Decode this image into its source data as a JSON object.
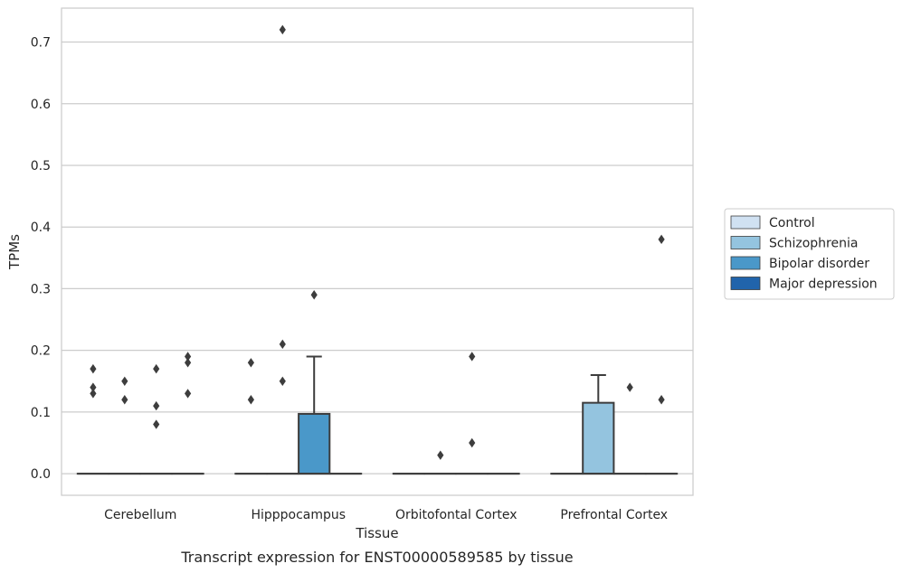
{
  "chart_data": {
    "type": "box",
    "title": "",
    "caption": "Transcript expression for ENST00000589585 by tissue",
    "xlabel": "Tissue",
    "ylabel": "TPMs",
    "ylim": [
      -0.035,
      0.755
    ],
    "yticks": [
      0.0,
      0.1,
      0.2,
      0.3,
      0.4,
      0.5,
      0.6,
      0.7
    ],
    "ytick_labels": [
      "0.0",
      "0.1",
      "0.2",
      "0.3",
      "0.4",
      "0.5",
      "0.6",
      "0.7"
    ],
    "grid": "horizontal",
    "legend_position": "right",
    "categories": [
      "Cerebellum",
      "Hipppocampus",
      "Orbitofontal Cortex",
      "Prefrontal Cortex"
    ],
    "series": [
      {
        "name": "Control",
        "color": "#d0e1f2"
      },
      {
        "name": "Schizophrenia",
        "color": "#94c4df"
      },
      {
        "name": "Bipolar disorder",
        "color": "#4a98c9"
      },
      {
        "name": "Major depression",
        "color": "#2164ab"
      }
    ],
    "boxes": [
      {
        "category": 0,
        "series": 0,
        "q1": 0,
        "median": 0,
        "q3": 0,
        "whisker_low": 0,
        "whisker_high": 0,
        "outliers": [
          0.17,
          0.14,
          0.13
        ]
      },
      {
        "category": 0,
        "series": 1,
        "q1": 0,
        "median": 0,
        "q3": 0,
        "whisker_low": 0,
        "whisker_high": 0,
        "outliers": [
          0.15,
          0.12
        ]
      },
      {
        "category": 0,
        "series": 2,
        "q1": 0,
        "median": 0,
        "q3": 0,
        "whisker_low": 0,
        "whisker_high": 0,
        "outliers": [
          0.17,
          0.11,
          0.08
        ]
      },
      {
        "category": 0,
        "series": 3,
        "q1": 0,
        "median": 0,
        "q3": 0,
        "whisker_low": 0,
        "whisker_high": 0,
        "outliers": [
          0.19,
          0.18,
          0.13
        ]
      },
      {
        "category": 1,
        "series": 0,
        "q1": 0,
        "median": 0,
        "q3": 0,
        "whisker_low": 0,
        "whisker_high": 0,
        "outliers": [
          0.18,
          0.12
        ]
      },
      {
        "category": 1,
        "series": 1,
        "q1": 0,
        "median": 0,
        "q3": 0,
        "whisker_low": 0,
        "whisker_high": 0,
        "outliers": [
          0.72,
          0.21,
          0.15
        ]
      },
      {
        "category": 1,
        "series": 2,
        "q1": 0,
        "median": 0,
        "q3": 0.097,
        "whisker_low": 0,
        "whisker_high": 0.19,
        "outliers": [
          0.29
        ]
      },
      {
        "category": 1,
        "series": 3,
        "q1": 0,
        "median": 0,
        "q3": 0,
        "whisker_low": 0,
        "whisker_high": 0,
        "outliers": []
      },
      {
        "category": 2,
        "series": 0,
        "q1": 0,
        "median": 0,
        "q3": 0,
        "whisker_low": 0,
        "whisker_high": 0,
        "outliers": []
      },
      {
        "category": 2,
        "series": 1,
        "q1": 0,
        "median": 0,
        "q3": 0,
        "whisker_low": 0,
        "whisker_high": 0,
        "outliers": [
          0.03
        ]
      },
      {
        "category": 2,
        "series": 2,
        "q1": 0,
        "median": 0,
        "q3": 0,
        "whisker_low": 0,
        "whisker_high": 0,
        "outliers": [
          0.19,
          0.05
        ]
      },
      {
        "category": 2,
        "series": 3,
        "q1": 0,
        "median": 0,
        "q3": 0,
        "whisker_low": 0,
        "whisker_high": 0,
        "outliers": []
      },
      {
        "category": 3,
        "series": 0,
        "q1": 0,
        "median": 0,
        "q3": 0,
        "whisker_low": 0,
        "whisker_high": 0,
        "outliers": []
      },
      {
        "category": 3,
        "series": 1,
        "q1": 0,
        "median": 0,
        "q3": 0.115,
        "whisker_low": 0,
        "whisker_high": 0.16,
        "outliers": []
      },
      {
        "category": 3,
        "series": 2,
        "q1": 0,
        "median": 0,
        "q3": 0,
        "whisker_low": 0,
        "whisker_high": 0,
        "outliers": [
          0.14
        ]
      },
      {
        "category": 3,
        "series": 3,
        "q1": 0,
        "median": 0,
        "q3": 0,
        "whisker_low": 0,
        "whisker_high": 0,
        "outliers": [
          0.38,
          0.12
        ]
      }
    ]
  }
}
